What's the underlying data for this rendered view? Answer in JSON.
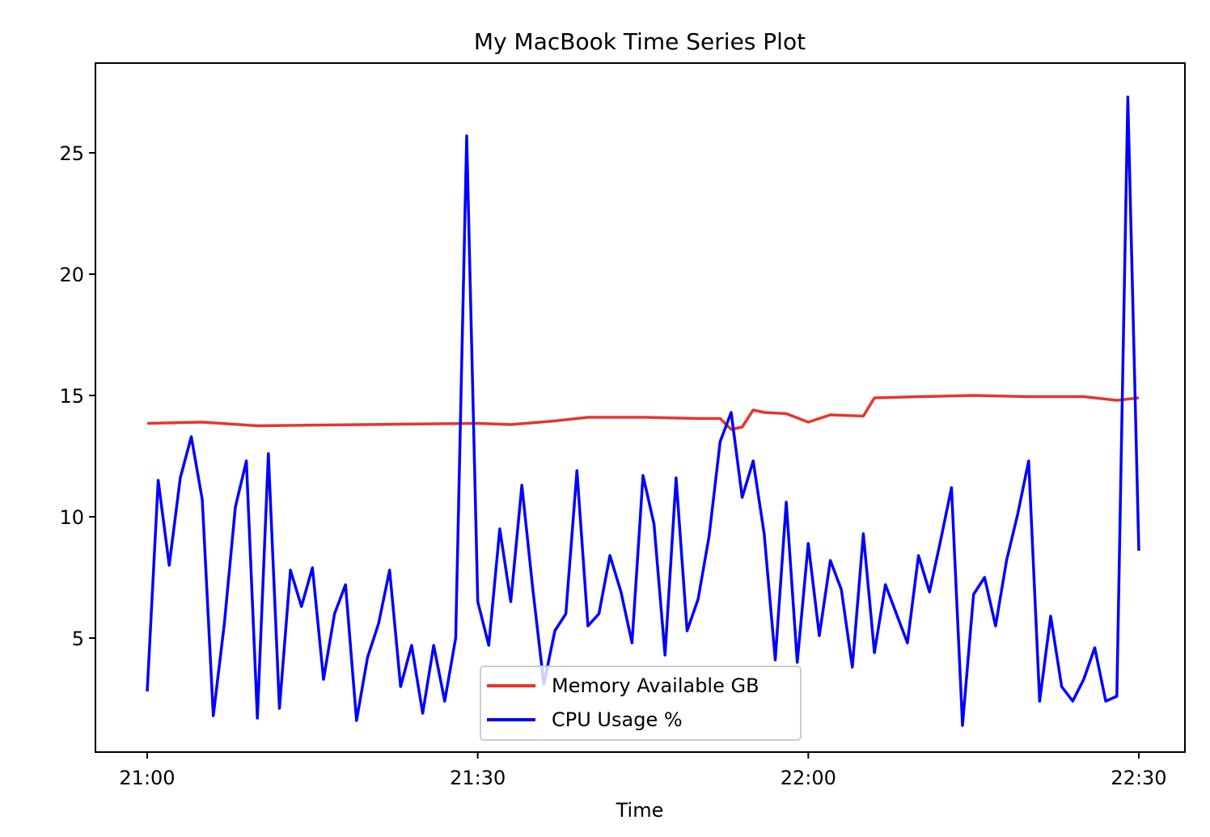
{
  "chart_data": {
    "type": "line",
    "title": "My MacBook Time Series Plot",
    "xlabel": "Time",
    "ylabel": "",
    "x_tick_labels": [
      "21:00",
      "21:30",
      "22:00",
      "22:30"
    ],
    "y_tick_labels": [
      "5",
      "10",
      "15",
      "20",
      "25"
    ],
    "y_ticks": [
      5,
      10,
      15,
      20,
      25
    ],
    "ylim": [
      0.3,
      28.7
    ],
    "grid": false,
    "legend_position": "lower center",
    "series": [
      {
        "name": "Memory Available GB",
        "color": "#e8352c",
        "x_times": [
          "21:00",
          "21:05",
          "21:10",
          "21:20",
          "21:30",
          "21:33",
          "21:37",
          "21:40",
          "21:45",
          "21:50",
          "21:52",
          "21:53",
          "21:54",
          "21:55",
          "21:56",
          "21:58",
          "22:00",
          "22:02",
          "22:05",
          "22:06",
          "22:10",
          "22:15",
          "22:20",
          "22:25",
          "22:28",
          "22:30"
        ],
        "values": [
          13.85,
          13.9,
          13.75,
          13.8,
          13.85,
          13.8,
          13.95,
          14.1,
          14.1,
          14.05,
          14.05,
          13.6,
          13.7,
          14.4,
          14.3,
          14.25,
          13.9,
          14.2,
          14.15,
          14.9,
          14.95,
          15.0,
          14.95,
          14.95,
          14.8,
          14.9
        ]
      },
      {
        "name": "CPU Usage %",
        "color": "#0000ff",
        "x_times": [
          "21:00",
          "21:01",
          "21:02",
          "21:03",
          "21:04",
          "21:05",
          "21:06",
          "21:07",
          "21:08",
          "21:09",
          "21:10",
          "21:11",
          "21:12",
          "21:13",
          "21:14",
          "21:15",
          "21:16",
          "21:17",
          "21:18",
          "21:19",
          "21:20",
          "21:21",
          "21:22",
          "21:23",
          "21:24",
          "21:25",
          "21:26",
          "21:27",
          "21:28",
          "21:29",
          "21:30",
          "21:31",
          "21:32",
          "21:33",
          "21:34",
          "21:35",
          "21:36",
          "21:37",
          "21:38",
          "21:39",
          "21:40",
          "21:41",
          "21:42",
          "21:43",
          "21:44",
          "21:45",
          "21:46",
          "21:47",
          "21:48",
          "21:49",
          "21:50",
          "21:51",
          "21:52",
          "21:53",
          "21:54",
          "21:55",
          "21:56",
          "21:57",
          "21:58",
          "21:59",
          "22:00",
          "22:01",
          "22:02",
          "22:03",
          "22:04",
          "22:05",
          "22:06",
          "22:07",
          "22:08",
          "22:09",
          "22:10",
          "22:11",
          "22:12",
          "22:13",
          "22:14",
          "22:15",
          "22:16",
          "22:17",
          "22:18",
          "22:19",
          "22:20",
          "22:21",
          "22:22",
          "22:23",
          "22:24",
          "22:25",
          "22:26",
          "22:27",
          "22:28",
          "22:29",
          "22:30"
        ],
        "values": [
          2.8,
          11.5,
          8.0,
          11.6,
          13.3,
          10.7,
          1.8,
          5.6,
          10.4,
          12.3,
          1.7,
          12.6,
          2.1,
          7.8,
          6.3,
          7.9,
          3.3,
          6.0,
          7.2,
          1.6,
          4.2,
          5.6,
          7.8,
          3.0,
          4.7,
          1.9,
          4.7,
          2.4,
          5.0,
          25.7,
          6.5,
          4.7,
          9.5,
          6.5,
          11.3,
          7.0,
          3.1,
          5.3,
          6.0,
          11.9,
          5.5,
          6.0,
          8.4,
          6.9,
          4.8,
          11.7,
          9.7,
          4.3,
          11.6,
          5.3,
          6.6,
          9.2,
          13.1,
          14.3,
          10.8,
          12.3,
          9.3,
          4.1,
          10.6,
          4.0,
          8.9,
          5.1,
          8.2,
          7.0,
          3.8,
          9.3,
          4.4,
          7.2,
          6.0,
          4.8,
          8.4,
          6.9,
          9.0,
          11.2,
          1.4,
          6.8,
          7.5,
          5.5,
          8.2,
          10.1,
          12.3,
          2.4,
          5.9,
          3.0,
          2.4,
          3.3,
          4.6,
          2.4,
          2.6,
          27.3,
          8.6
        ]
      }
    ]
  }
}
